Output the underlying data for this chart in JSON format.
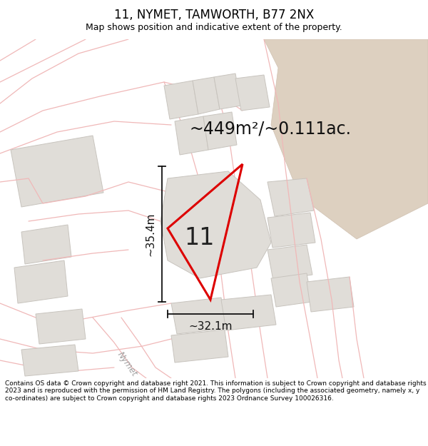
{
  "title": "11, NYMET, TAMWORTH, B77 2NX",
  "subtitle": "Map shows position and indicative extent of the property.",
  "footer": "Contains OS data © Crown copyright and database right 2021. This information is subject to Crown copyright and database rights 2023 and is reproduced with the permission of HM Land Registry. The polygons (including the associated geometry, namely x, y co-ordinates) are subject to Crown copyright and database rights 2023 Ordnance Survey 100026316.",
  "area_label": "~449m²/~0.111ac.",
  "plot_number": "11",
  "dim_width": "~32.1m",
  "dim_height": "~35.4m",
  "map_bg": "#ffffff",
  "road_stroke": "#f0b8b8",
  "bld_fill": "#e0ddd8",
  "bld_stroke": "#c8c4be",
  "tan_fill": "#ddd0c0",
  "tan_stroke": "#cfc0b0",
  "plot_stroke": "#dd0000",
  "plot_fill": "#f5eeee",
  "dim_color": "#111111",
  "street_color": "#a0a0a0",
  "figsize": [
    6.0,
    6.25
  ],
  "dpi": 100,
  "title_fs": 12,
  "subtitle_fs": 9,
  "area_fs": 17,
  "plotnum_fs": 24,
  "dim_fs": 11,
  "footer_fs": 6.5
}
